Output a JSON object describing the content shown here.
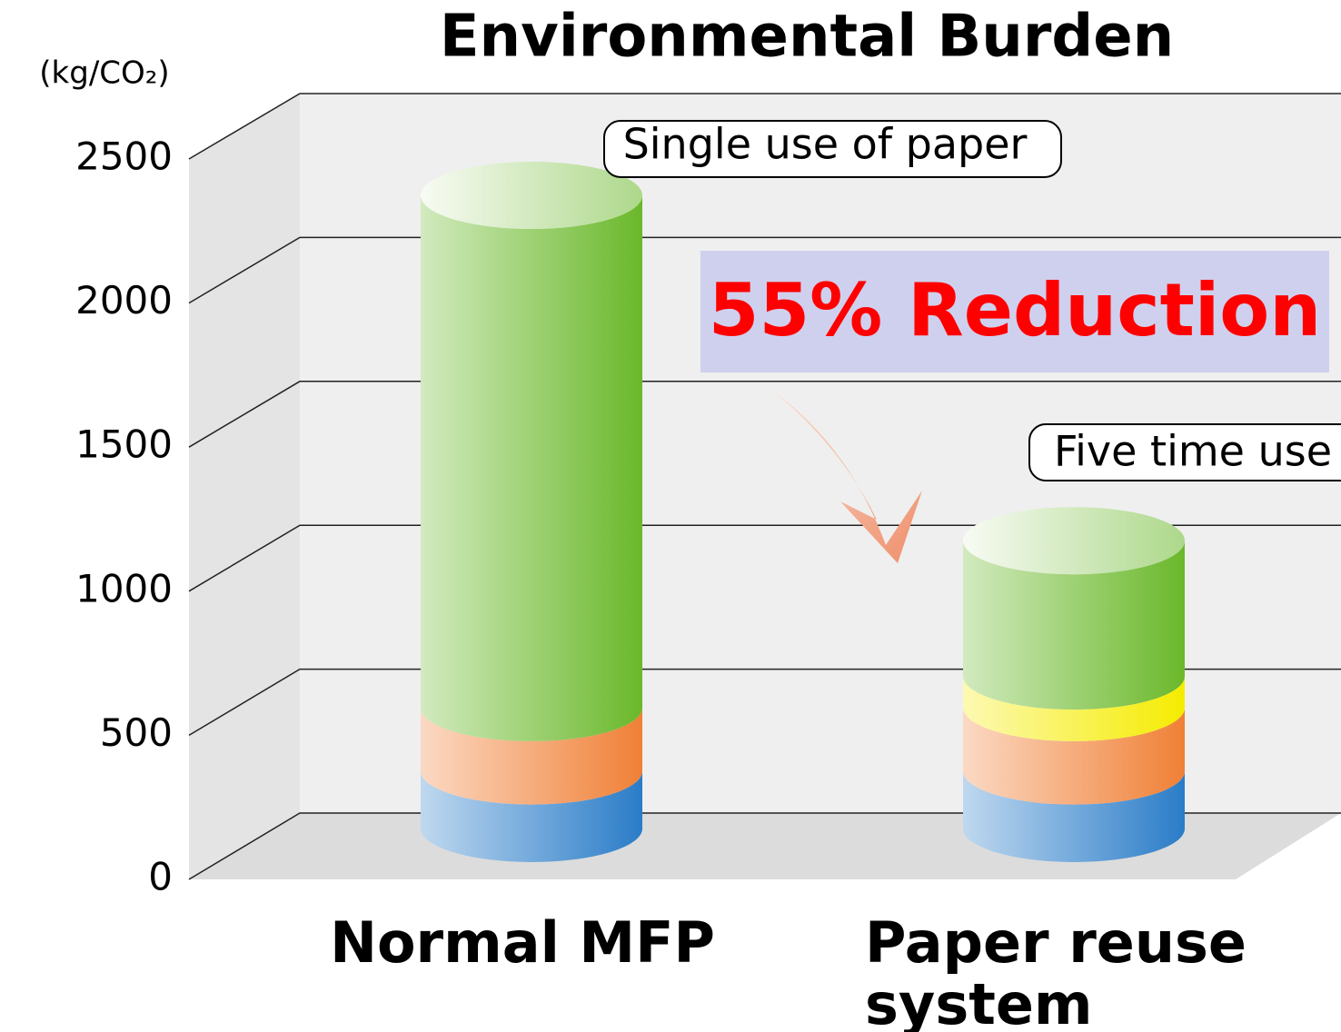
{
  "chart_data": {
    "type": "stacked-cylinder",
    "title": "Environmental Burden",
    "y_axis_label": "(kg/CO₂)",
    "categories": [
      "Normal MFP",
      "Paper reuse system"
    ],
    "series": [
      {
        "color": "#2a7cc8",
        "values": [
          200,
          200
        ]
      },
      {
        "color": "#f08036",
        "values": [
          220,
          220
        ]
      },
      {
        "color": "#f5ec00",
        "values": [
          null,
          110
        ]
      },
      {
        "color": "#6ab82a",
        "values": [
          1780,
          470
        ]
      }
    ],
    "ylim": [
      0,
      2500
    ],
    "yticks": [
      0,
      500,
      1000,
      1500,
      2000,
      2500
    ],
    "grid": true,
    "annotations": [
      "Single use of paper",
      "Five time use",
      "55% Reduction"
    ]
  }
}
